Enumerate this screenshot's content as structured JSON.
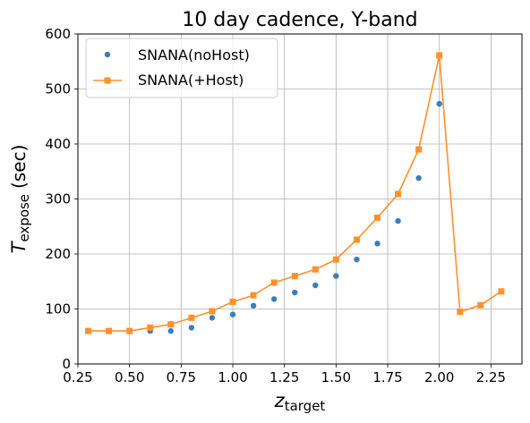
{
  "chart_data": {
    "type": "line",
    "title": "10 day cadence, Y-band",
    "xlabel": {
      "main": "z",
      "sub": "target"
    },
    "ylabel": {
      "main": "T",
      "sub": "expose",
      "suffix": "(sec)"
    },
    "xlim": [
      0.25,
      2.4
    ],
    "ylim": [
      0,
      600
    ],
    "xticks": [
      0.25,
      0.5,
      0.75,
      1.0,
      1.25,
      1.5,
      1.75,
      2.0,
      2.25
    ],
    "xtick_labels": [
      "0.25",
      "0.50",
      "0.75",
      "1.00",
      "1.25",
      "1.50",
      "1.75",
      "2.00",
      "2.25"
    ],
    "yticks": [
      0,
      100,
      200,
      300,
      400,
      500,
      600
    ],
    "ytick_labels": [
      "0",
      "100",
      "200",
      "300",
      "400",
      "500",
      "600"
    ],
    "grid": true,
    "legend_position": "top-left",
    "series": [
      {
        "name": "SNANA(noHost)",
        "style": "dots",
        "color": "#3a7dbf",
        "x": [
          0.3,
          0.4,
          0.5,
          0.6,
          0.7,
          0.8,
          0.9,
          1.0,
          1.1,
          1.2,
          1.3,
          1.4,
          1.5,
          1.6,
          1.7,
          1.8,
          1.9,
          2.0
        ],
        "y": [
          60,
          60,
          60,
          60,
          60,
          66,
          84,
          90,
          106,
          118,
          130,
          143,
          160,
          190,
          219,
          260,
          338,
          473
        ]
      },
      {
        "name": "SNANA(+Host)",
        "style": "line-square",
        "color": "#ff902a",
        "x": [
          0.3,
          0.4,
          0.5,
          0.6,
          0.7,
          0.8,
          0.9,
          1.0,
          1.1,
          1.2,
          1.3,
          1.4,
          1.5,
          1.6,
          1.7,
          1.8,
          1.9,
          2.0,
          2.1,
          2.2,
          2.3
        ],
        "y": [
          60,
          60,
          60,
          66,
          72,
          84,
          96,
          113,
          125,
          148,
          160,
          172,
          190,
          226,
          266,
          309,
          390,
          561,
          95,
          107,
          132
        ]
      }
    ]
  }
}
